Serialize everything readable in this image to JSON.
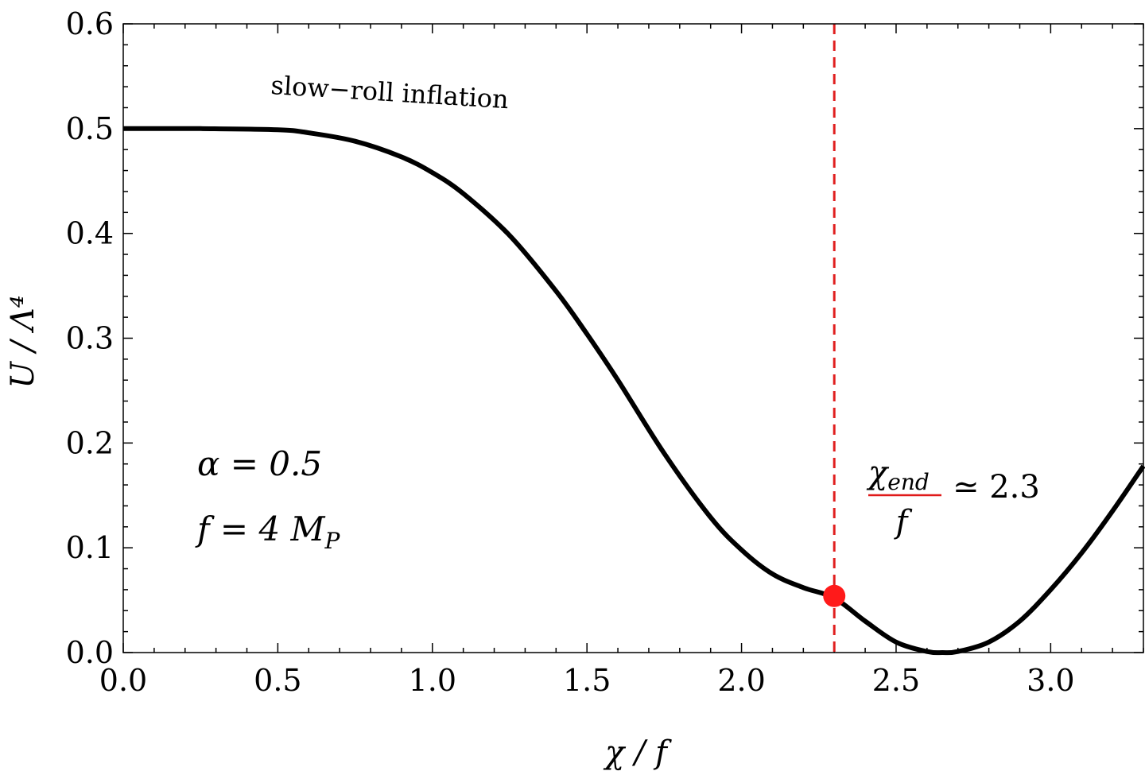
{
  "chart_data": {
    "type": "line",
    "title": "",
    "xlabel": "χ / f",
    "ylabel": "U / Λ⁴",
    "xlim": [
      0.0,
      3.3
    ],
    "ylim": [
      0.0,
      0.6
    ],
    "grid": false,
    "legend": "none",
    "x_ticks": [
      0.0,
      0.5,
      1.0,
      1.5,
      2.0,
      2.5,
      3.0
    ],
    "x_tick_labels": [
      "0.0",
      "0.5",
      "1.0",
      "1.5",
      "2.0",
      "2.5",
      "3.0"
    ],
    "y_ticks": [
      0.0,
      0.1,
      0.2,
      0.3,
      0.4,
      0.5,
      0.6
    ],
    "y_tick_labels": [
      "0.0",
      "0.1",
      "0.2",
      "0.3",
      "0.4",
      "0.5",
      "0.6"
    ],
    "series": [
      {
        "color": "#000000",
        "x": [
          0.0,
          0.25,
          0.5,
          0.6,
          0.75,
          0.9,
          1.0,
          1.1,
          1.25,
          1.4,
          1.5,
          1.6,
          1.75,
          1.9,
          2.0,
          2.1,
          2.2,
          2.3,
          2.4,
          2.5,
          2.6,
          2.65,
          2.7,
          2.8,
          2.9,
          3.0,
          3.1,
          3.2,
          3.3
        ],
        "y": [
          0.5,
          0.5,
          0.499,
          0.496,
          0.488,
          0.473,
          0.458,
          0.438,
          0.398,
          0.345,
          0.304,
          0.26,
          0.19,
          0.129,
          0.098,
          0.075,
          0.062,
          0.052,
          0.03,
          0.01,
          0.001,
          0.0,
          0.001,
          0.01,
          0.03,
          0.06,
          0.095,
          0.135,
          0.178
        ]
      }
    ],
    "vertical_line": {
      "x": 2.3,
      "color": "#e02020",
      "style": "dashed"
    },
    "marker": {
      "x": 2.3,
      "y": 0.054,
      "color": "#ff1a1a"
    },
    "annotations": {
      "slow_roll": "slow−roll inflation",
      "alpha_param": "α = 0.5",
      "f_param": "f = 4 M",
      "f_param_sub": "P",
      "chi_end_num": "χ",
      "chi_end_sub": "end",
      "chi_end_den": "f",
      "chi_end_value": "≃ 2.3"
    }
  }
}
